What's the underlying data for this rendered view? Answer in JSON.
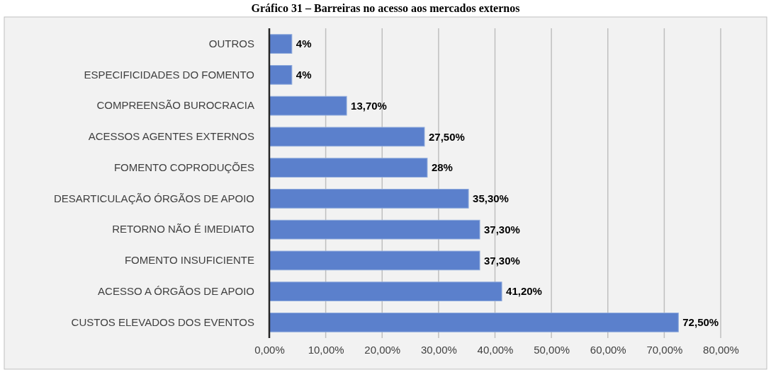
{
  "chart_data": {
    "type": "bar",
    "orientation": "horizontal",
    "title": "Gráfico 31 – Barreiras no acesso aos mercados externos",
    "categories": [
      "OUTROS",
      "ESPECIFICIDADES DO FOMENTO",
      "COMPREENSÃO BUROCRACIA",
      "ACESSOS AGENTES EXTERNOS",
      "FOMENTO COPRODUÇÕES",
      "DESARTICULAÇÃO ÓRGÃOS DE APOIO",
      "RETORNO NÃO É IMEDIATO",
      "FOMENTO INSUFICIENTE",
      "ACESSO A ÓRGÃOS DE APOIO",
      "CUSTOS ELEVADOS DOS EVENTOS"
    ],
    "values": [
      4,
      4,
      13.7,
      27.5,
      28,
      35.3,
      37.3,
      37.3,
      41.2,
      72.5
    ],
    "value_labels": [
      "4%",
      "4%",
      "13,70%",
      "27,50%",
      "28%",
      "35,30%",
      "37,30%",
      "37,30%",
      "41,20%",
      "72,50%"
    ],
    "color": "#5b80cc",
    "xlim": [
      0,
      80
    ],
    "xticks": [
      {
        "value": 0,
        "label": "0,00%"
      },
      {
        "value": 10,
        "label": "10,00%"
      },
      {
        "value": 20,
        "label": "20,00%"
      },
      {
        "value": 30,
        "label": "30,00%"
      },
      {
        "value": 40,
        "label": "40,00%"
      },
      {
        "value": 50,
        "label": "50,00%"
      },
      {
        "value": 60,
        "label": "60,00%"
      },
      {
        "value": 70,
        "label": "70,00%"
      },
      {
        "value": 80,
        "label": "80,00%"
      }
    ],
    "grid": "x"
  }
}
